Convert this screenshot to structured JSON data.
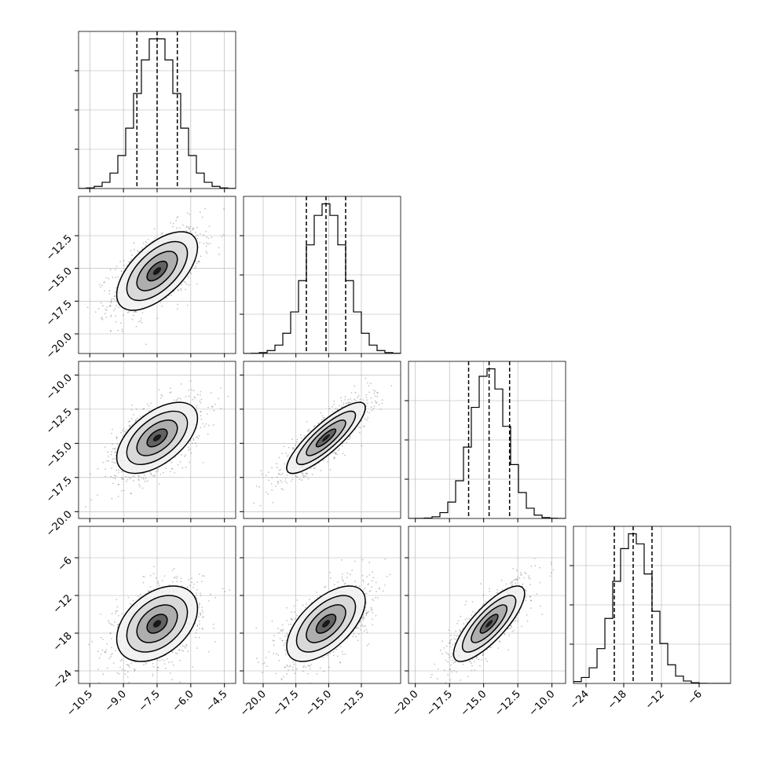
{
  "chart_data": {
    "type": "corner",
    "description_free": true,
    "colors": {
      "line": "#000000",
      "grid": "#b0b0b0",
      "density": "#000000",
      "scatter": "#555555",
      "background": "#ffffff"
    },
    "parameters": [
      {
        "index": 0,
        "mean": -7.5,
        "sd": 0.9,
        "range": [
          -11.0,
          -4.0
        ],
        "ticks": [
          -10.5,
          -9.0,
          -7.5,
          -6.0,
          -4.5
        ],
        "tick_labels": [
          "−10.5",
          "−9.0",
          "−7.5",
          "−6.0",
          "−4.5"
        ],
        "quantiles": [
          -8.4,
          -7.5,
          -6.6
        ]
      },
      {
        "index": 1,
        "mean": -15.2,
        "sd": 1.5,
        "range": [
          -21.5,
          -9.5
        ],
        "ticks": [
          -20.0,
          -17.5,
          -15.0,
          -12.5
        ],
        "tick_labels": [
          "−20.0",
          "−17.5",
          "−15.0",
          "−12.5"
        ],
        "quantiles": [
          -16.7,
          -15.2,
          -13.7
        ]
      },
      {
        "index": 2,
        "mean": -14.6,
        "sd": 1.3,
        "range": [
          -20.5,
          -9.0
        ],
        "ticks": [
          -20.0,
          -17.5,
          -15.0,
          -12.5,
          -10.0
        ],
        "tick_labels": [
          "−20.0",
          "−17.5",
          "−15.0",
          "−12.5",
          "−10.0"
        ],
        "quantiles": [
          -16.1,
          -14.6,
          -13.1
        ]
      },
      {
        "index": 3,
        "mean": -16.5,
        "sd": 3.0,
        "range": [
          -26.0,
          -1.0
        ],
        "ticks": [
          -24,
          -18,
          -12,
          -6
        ],
        "tick_labels": [
          "−24",
          "−18",
          "−12",
          "−6"
        ],
        "quantiles": [
          -19.5,
          -16.5,
          -13.5
        ]
      }
    ],
    "correlations": {
      "1,0": 0.6,
      "2,0": 0.55,
      "2,1": 0.85,
      "3,0": 0.4,
      "3,1": 0.6,
      "3,2": 0.8
    },
    "histogram_bins": 20,
    "grid": true
  }
}
